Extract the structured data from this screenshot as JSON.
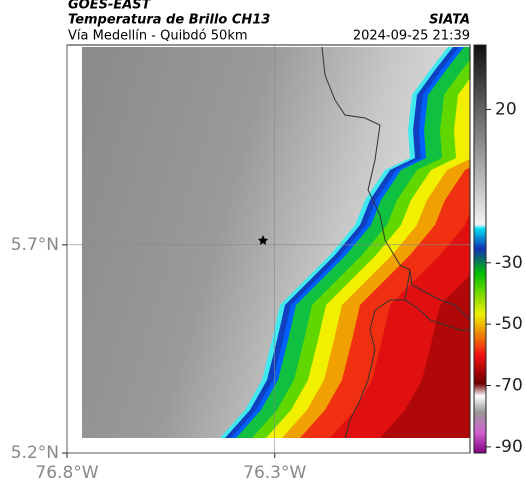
{
  "header": {
    "satellite": "GOES-EAST",
    "title": "Temperatura de Brillo CH13",
    "subtitle": "Vía Medellín - Quibdó 50km",
    "source": "SIATA",
    "datetime": "2024-09-25 21:39"
  },
  "map": {
    "xlim": [
      -76.8,
      -75.83
    ],
    "ylim": [
      5.2,
      6.18
    ],
    "xticks": [
      {
        "value": -76.8,
        "label": "76.8°W"
      },
      {
        "value": -76.3,
        "label": "76.3°W"
      }
    ],
    "yticks": [
      {
        "value": 5.7,
        "label": "5.7°N"
      },
      {
        "value": 5.2,
        "label": "5.2°N"
      }
    ],
    "grid": true
  },
  "colorbar": {
    "lim": [
      -92,
      41
    ],
    "ticks": [
      20,
      -30,
      -50,
      -70,
      -90
    ]
  }
}
